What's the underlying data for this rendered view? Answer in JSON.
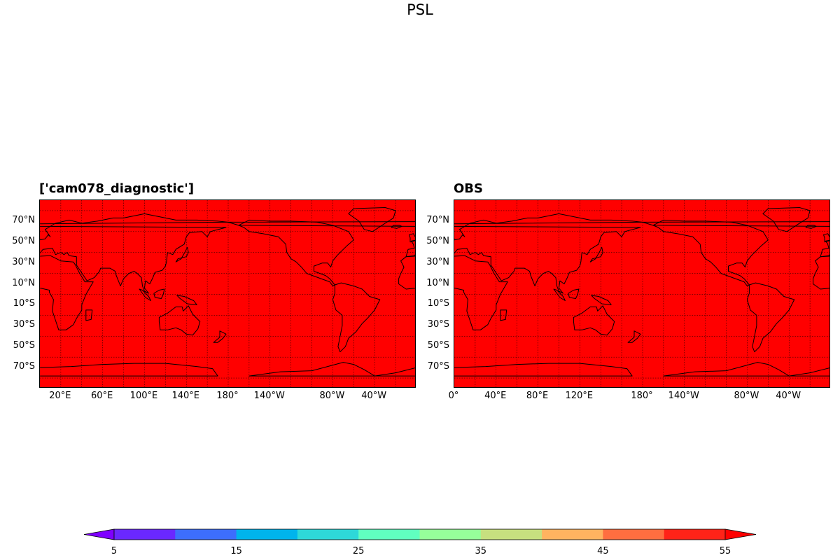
{
  "figure": {
    "title": "PSL"
  },
  "chart_data": [
    {
      "type": "heatmap",
      "title": "['cam078_diagnostic']",
      "field_value": "55+",
      "fill_color": "#ff0000",
      "lat_ticks": [
        "70°N",
        "50°N",
        "30°N",
        "10°N",
        "10°S",
        "30°S",
        "50°S",
        "70°S"
      ],
      "lon_ticks": [
        "20°E",
        "60°E",
        "100°E",
        "140°E",
        "180°",
        "140°W",
        "80°W",
        "40°W"
      ],
      "grid": true
    },
    {
      "type": "heatmap",
      "title": "OBS",
      "field_value": "55+",
      "fill_color": "#ff0000",
      "lat_ticks": [
        "70°N",
        "50°N",
        "30°N",
        "10°N",
        "10°S",
        "30°S",
        "50°S",
        "70°S"
      ],
      "lon_ticks": [
        "0°",
        "40°E",
        "80°E",
        "120°E",
        "180°",
        "140°W",
        "80°W",
        "40°W"
      ],
      "grid": true
    }
  ],
  "colorbar": {
    "tick_labels": [
      "5",
      "15",
      "25",
      "35",
      "45",
      "55"
    ],
    "levels": [
      5,
      10,
      15,
      20,
      25,
      30,
      35,
      40,
      45,
      50,
      55
    ],
    "colors": [
      "#7f00ff",
      "#6a28ff",
      "#3d6efd",
      "#00b4ec",
      "#2ed8d8",
      "#60ffc0",
      "#96ff9a",
      "#c7e07f",
      "#ffb360",
      "#ff6e40",
      "#ff2318",
      "#ff0000"
    ],
    "extend": "both"
  }
}
